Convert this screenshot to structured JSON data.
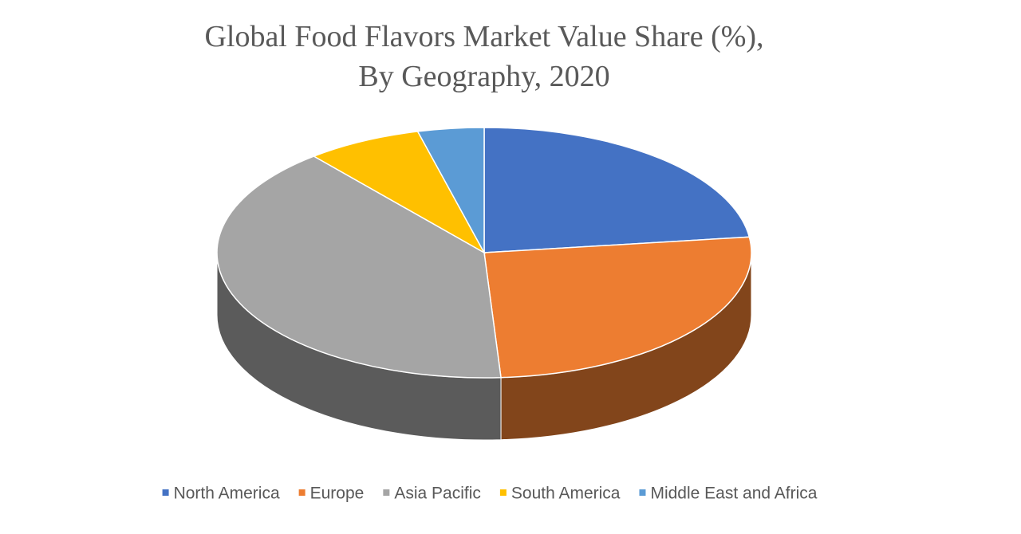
{
  "chart_data": {
    "type": "pie3d",
    "title": [
      "Global Food Flavors Market Value Share (%),",
      "By Geography, 2020"
    ],
    "categories": [
      "North America",
      "Europe",
      "Asia Pacific",
      "South America",
      "Middle East and Africa"
    ],
    "values": [
      23,
      26,
      40,
      7,
      4
    ],
    "colors": [
      "#4472c4",
      "#ed7d31",
      "#a5a5a5",
      "#ffc000",
      "#5b9bd5"
    ],
    "legend": "bottom"
  }
}
